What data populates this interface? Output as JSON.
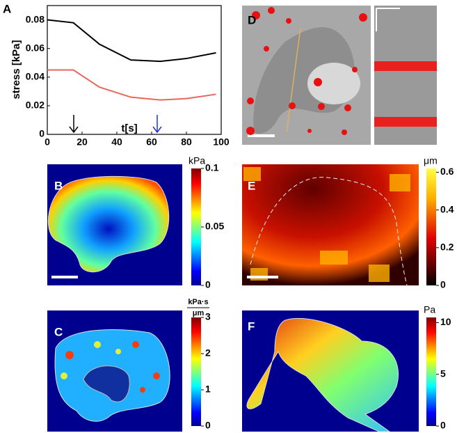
{
  "chart_data": [
    {
      "type": "line",
      "label": "A",
      "ylabel": "stress [kPa]",
      "xlabel": "t[s]",
      "x": [
        0,
        15,
        30,
        48,
        65,
        80,
        97
      ],
      "series": [
        {
          "color": "#000000",
          "values": [
            0.08,
            0.078,
            0.063,
            0.052,
            0.051,
            0.053,
            0.057
          ]
        },
        {
          "color": "#e8665a",
          "values": [
            0.045,
            0.045,
            0.033,
            0.026,
            0.024,
            0.025,
            0.028
          ]
        }
      ],
      "xlim": [
        0,
        100
      ],
      "xticks": [
        0,
        20,
        40,
        60,
        80,
        100
      ],
      "ylim": [
        0,
        0.09
      ],
      "yticks": [
        0,
        0.02,
        0.04,
        0.06,
        0.08
      ]
    }
  ],
  "panels": [
    {
      "label": "D"
    },
    {
      "label": "B",
      "unit": "kPa",
      "colormap": "jet",
      "clim": [
        0,
        0.1
      ],
      "cticks": [
        0,
        0.05,
        0.1
      ]
    },
    {
      "label": "E",
      "unit": "μm",
      "colormap": "hot",
      "clim": [
        0,
        0.62
      ],
      "cticks": [
        0,
        0.2,
        0.4,
        0.6
      ]
    },
    {
      "label": "C",
      "unit": [
        "kPa·s",
        "μm"
      ],
      "colormap": "jet",
      "clim": [
        0,
        3
      ],
      "cticks": [
        0,
        1,
        2,
        3
      ]
    },
    {
      "label": "F",
      "unit": "Pa",
      "colormap": "jet",
      "clim": [
        0,
        10.5
      ],
      "cticks": [
        0,
        5,
        10
      ]
    }
  ]
}
